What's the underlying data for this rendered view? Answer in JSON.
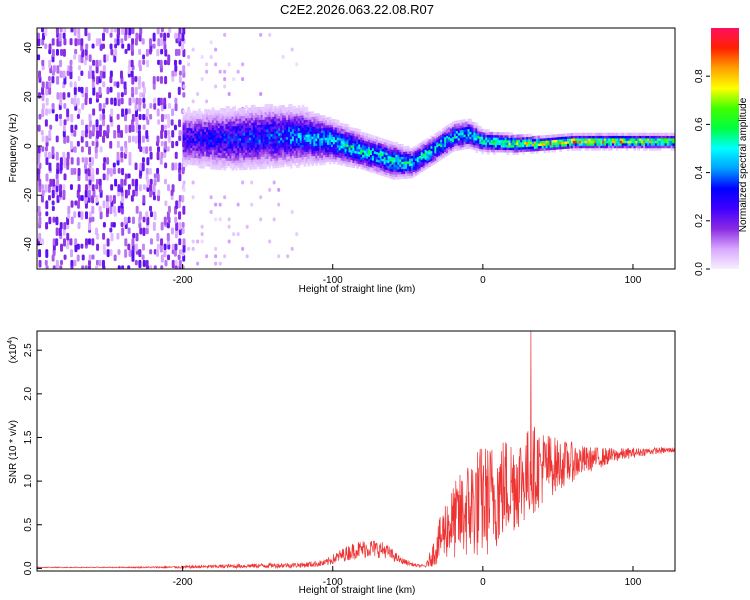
{
  "figure": {
    "title": "C2E2.2026.063.22.08.R07"
  },
  "chart_data": [
    {
      "type": "heatmap",
      "xlabel": "Height of straight line (km)",
      "ylabel": "Frequency (Hz)",
      "xlim": [
        -297,
        128
      ],
      "ylim": [
        -50,
        48
      ],
      "xticks": [
        "-200",
        "-100",
        "0",
        "100"
      ],
      "xtick_values": [
        -200,
        -100,
        0,
        100
      ],
      "yticks": [
        "-40",
        "-20",
        "0",
        "20",
        "40"
      ],
      "ytick_values": [
        -40,
        -20,
        0,
        20,
        40
      ],
      "colorbar": {
        "label": "Normalized spectral amplitude",
        "ticks": [
          "0.0",
          "0.2",
          "0.4",
          "0.6",
          "0.8"
        ],
        "tick_values": [
          0.0,
          0.2,
          0.4,
          0.6,
          0.8
        ],
        "range": [
          0,
          1
        ],
        "colors": [
          "#f7f0ff",
          "#d8a8ff",
          "#8a2be2",
          "#4000ff",
          "#0000ff",
          "#00a0ff",
          "#00ffff",
          "#00ff40",
          "#40ff00",
          "#ffff00",
          "#ffa000",
          "#ff2000",
          "#ff1060"
        ]
      },
      "frequency_trend": {
        "x": [
          -200,
          -170,
          -140,
          -120,
          -100,
          -80,
          -60,
          -48,
          -35,
          -20,
          -10,
          0,
          20,
          40,
          60,
          80,
          100,
          128
        ],
        "y": [
          3,
          3,
          4,
          4,
          2,
          -2,
          -6,
          -7,
          -2,
          4,
          5,
          2,
          1,
          1,
          2,
          2,
          2,
          2
        ],
        "halfwidth": [
          8,
          9,
          9,
          8,
          6,
          5,
          5,
          4,
          4,
          4,
          4,
          3,
          2.5,
          2,
          2,
          2,
          2,
          2
        ],
        "peak_amplitude": [
          0.3,
          0.35,
          0.4,
          0.45,
          0.5,
          0.55,
          0.55,
          0.55,
          0.55,
          0.55,
          0.55,
          0.6,
          0.75,
          0.85,
          0.85,
          0.85,
          0.8,
          0.7
        ]
      },
      "noise_region": {
        "x_from": -297,
        "x_to": -200,
        "sparse_to": -160
      }
    },
    {
      "type": "line",
      "xlabel": "Height of straight line (km)",
      "ylabel": "SNR (10 * v/v)",
      "scale_label": "(x10",
      "scale_exponent": "4",
      "xlim": [
        -297,
        128
      ],
      "ylim": [
        -0.03,
        2.72
      ],
      "xticks": [
        "-200",
        "-100",
        "0",
        "100"
      ],
      "xtick_values": [
        -200,
        -100,
        0,
        100
      ],
      "yticks": [
        "0.0",
        "0.5",
        "1.0",
        "1.5",
        "2.0",
        "2.5"
      ],
      "ytick_values": [
        0.0,
        0.5,
        1.0,
        1.5,
        2.0,
        2.5
      ],
      "color": "#ee3333",
      "envelope": {
        "x": [
          -297,
          -250,
          -210,
          -200,
          -160,
          -120,
          -105,
          -95,
          -85,
          -75,
          -65,
          -55,
          -45,
          -38,
          -32,
          -25,
          -15,
          -5,
          5,
          15,
          25,
          35,
          50,
          70,
          90,
          110,
          128
        ],
        "base": [
          0.01,
          0.01,
          0.01,
          0.01,
          0.02,
          0.03,
          0.05,
          0.12,
          0.18,
          0.2,
          0.18,
          0.08,
          0.03,
          0.02,
          0.15,
          0.35,
          0.45,
          0.55,
          0.6,
          0.75,
          0.85,
          1.0,
          1.1,
          1.2,
          1.28,
          1.33,
          1.35
        ],
        "amp": [
          0.01,
          0.01,
          0.02,
          0.03,
          0.05,
          0.06,
          0.08,
          0.15,
          0.2,
          0.22,
          0.18,
          0.08,
          0.03,
          0.03,
          0.35,
          0.7,
          1.0,
          1.3,
          1.3,
          1.2,
          1.1,
          1.0,
          0.6,
          0.3,
          0.15,
          0.08,
          0.06
        ]
      },
      "peak": {
        "x": 32,
        "y": 2.72
      }
    }
  ]
}
